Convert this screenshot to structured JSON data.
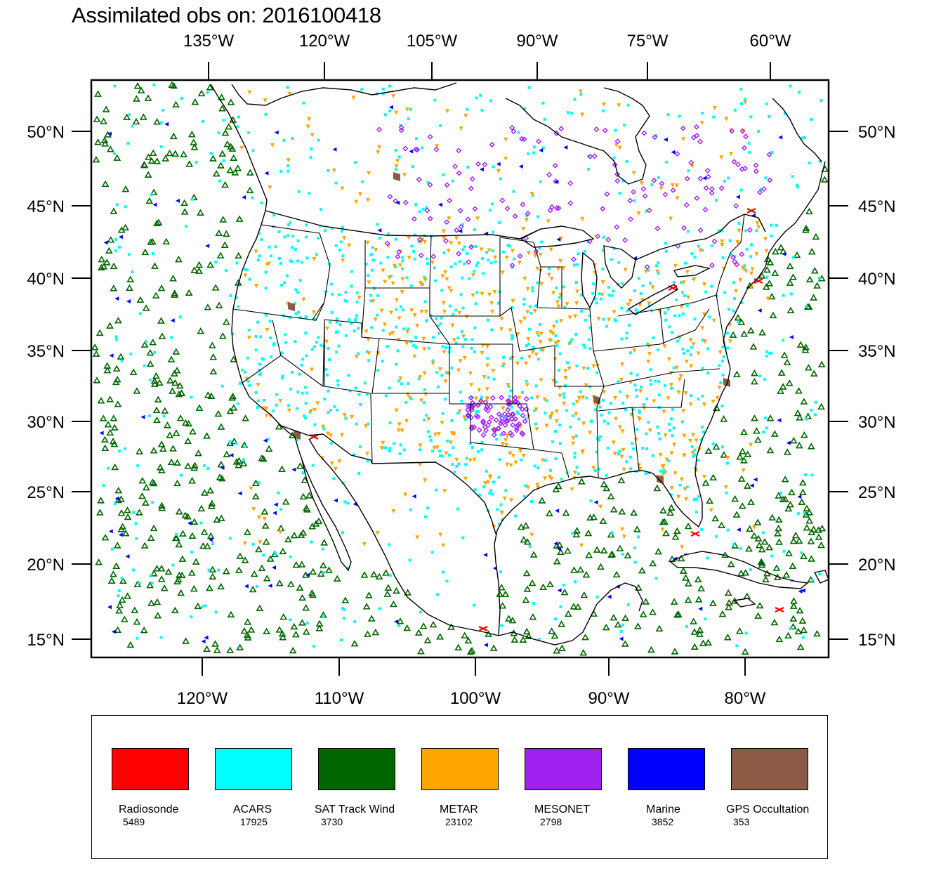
{
  "title": "Assimilated obs on: 2016100418",
  "map": {
    "top_lon_ticks": [
      "135°W",
      "120°W",
      "105°W",
      "90°W",
      "75°W",
      "60°W"
    ],
    "bottom_lon_ticks": [
      "120°W",
      "110°W",
      "100°W",
      "90°W",
      "80°W"
    ],
    "lat_ticks": [
      "50°N",
      "45°N",
      "40°N",
      "35°N",
      "30°N",
      "25°N",
      "20°N",
      "15°N"
    ],
    "colors": {
      "radiosonde": "#ff0000",
      "acars": "#00ffff",
      "sat_track_wind": "#006400",
      "metar": "#ffa500",
      "mesonet": "#a020f0",
      "marine": "#0000ff",
      "gps_occultation": "#8b5a44",
      "coastline": "#000000"
    }
  },
  "legend": {
    "items": [
      {
        "name": "Radiosonde",
        "count": "5489",
        "color": "#ff0000",
        "icon": "red-swatch"
      },
      {
        "name": "ACARS",
        "count": "17925",
        "color": "#00ffff",
        "icon": "cyan-swatch"
      },
      {
        "name": "SAT Track Wind",
        "count": "3730",
        "color": "#006400",
        "icon": "green-swatch"
      },
      {
        "name": "METAR",
        "count": "23102",
        "color": "#ffa500",
        "icon": "orange-swatch"
      },
      {
        "name": "MESONET",
        "count": "2798",
        "color": "#a020f0",
        "icon": "purple-swatch"
      },
      {
        "name": "Marine",
        "count": "3852",
        "color": "#0000ff",
        "icon": "blue-swatch"
      },
      {
        "name": "GPS Occultation",
        "count": "353",
        "color": "#8b5a44",
        "icon": "brown-swatch"
      }
    ]
  }
}
